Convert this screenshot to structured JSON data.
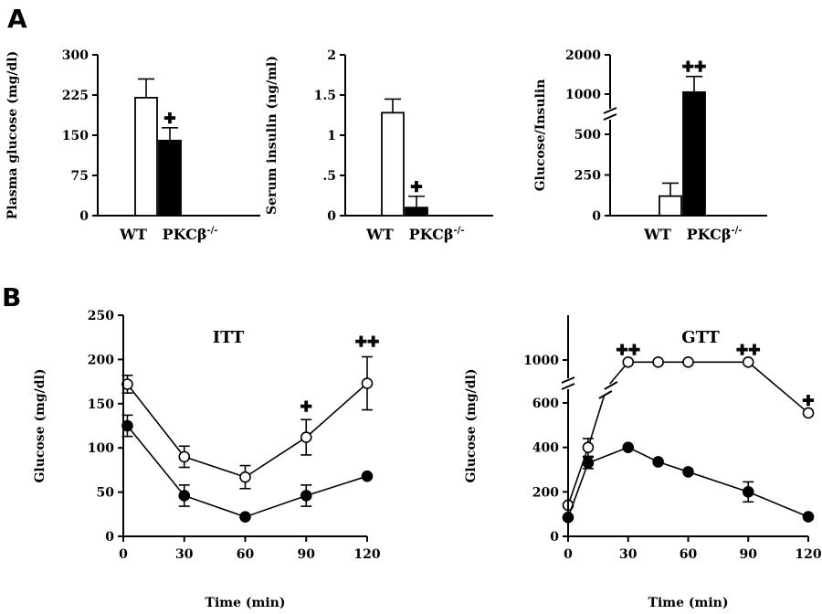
{
  "panels": {
    "a": "A",
    "b": "B"
  },
  "chart_data": [
    {
      "id": "glucose",
      "type": "bar",
      "ylabel": "Plasma glucose (mg/dl)",
      "ylim": [
        0,
        300
      ],
      "yticks": [
        0,
        75,
        150,
        225,
        300
      ],
      "ytick_labels": [
        "0",
        "75",
        "150",
        "225",
        "300"
      ],
      "categories": [
        "WT",
        "PKCβ-/-"
      ],
      "category_labels": [
        {
          "main": "WT",
          "sup": ""
        },
        {
          "main": "PKCβ",
          "sup": "-/-"
        }
      ],
      "values": [
        220,
        140
      ],
      "errors": [
        35,
        24
      ],
      "colors": [
        "#ffffff",
        "#000000"
      ],
      "annotations": [
        {
          "index": 1,
          "text": "✚"
        }
      ]
    },
    {
      "id": "insulin",
      "type": "bar",
      "ylabel": "Serum insulin (ng/ml)",
      "ylim": [
        0,
        2
      ],
      "yticks": [
        0,
        0.5,
        1,
        1.5,
        2
      ],
      "ytick_labels": [
        "0",
        ".5",
        "1",
        "1.5",
        "2"
      ],
      "categories": [
        "WT",
        "PKCβ-/-"
      ],
      "category_labels": [
        {
          "main": "WT",
          "sup": ""
        },
        {
          "main": "PKCβ",
          "sup": "-/-"
        }
      ],
      "values": [
        1.28,
        0.1
      ],
      "errors": [
        0.17,
        0.14
      ],
      "colors": [
        "#ffffff",
        "#000000"
      ],
      "annotations": [
        {
          "index": 1,
          "text": "✚"
        }
      ]
    },
    {
      "id": "ratio",
      "type": "bar",
      "ylabel": "Glucose/Insulin",
      "axis_break": true,
      "yticks": [
        0,
        250,
        500,
        1000,
        2000
      ],
      "ytick_labels": [
        "0",
        "250",
        "500",
        "1000",
        "2000"
      ],
      "categories": [
        "WT",
        "PKCβ-/-"
      ],
      "category_labels": [
        {
          "main": "WT",
          "sup": ""
        },
        {
          "main": "PKCβ",
          "sup": "-/-"
        }
      ],
      "values": [
        120,
        1050
      ],
      "errors": [
        80,
        400
      ],
      "colors": [
        "#ffffff",
        "#000000"
      ],
      "annotations": [
        {
          "index": 1,
          "text": "✚✚"
        }
      ]
    },
    {
      "id": "itt",
      "type": "line",
      "title": "ITT",
      "xlabel": "Time (min)",
      "ylabel": "Glucose (mg/dl)",
      "xlim": [
        0,
        120
      ],
      "ylim": [
        0,
        250
      ],
      "xticks": [
        0,
        30,
        60,
        90,
        120
      ],
      "yticks": [
        0,
        50,
        100,
        150,
        200,
        250
      ],
      "series": [
        {
          "marker": "open",
          "x": [
            2,
            30,
            60,
            90,
            120
          ],
          "y": [
            172,
            90,
            67,
            112,
            173
          ],
          "err": [
            10,
            12,
            13,
            20,
            30
          ]
        },
        {
          "marker": "filled",
          "x": [
            2,
            30,
            60,
            90,
            120
          ],
          "y": [
            125,
            46,
            22,
            46,
            68
          ],
          "err": [
            12,
            12,
            0,
            12,
            0
          ]
        }
      ],
      "annotations": [
        {
          "x": 90,
          "y": 112,
          "text": "✚"
        },
        {
          "x": 120,
          "y": 173,
          "text": "✚✚"
        }
      ]
    },
    {
      "id": "gtt",
      "type": "line",
      "title": "GTT",
      "xlabel": "Time (min)",
      "ylabel": "Glucose (mg/dl)",
      "axis_break": true,
      "xlim": [
        0,
        120
      ],
      "xticks": [
        0,
        30,
        60,
        90,
        120
      ],
      "yticks": [
        0,
        200,
        400,
        600,
        1000
      ],
      "series": [
        {
          "marker": "open",
          "x": [
            0,
            10,
            30,
            45,
            60,
            90,
            120
          ],
          "y": [
            140,
            400,
            980,
            980,
            980,
            980,
            555
          ],
          "err": [
            0,
            40,
            0,
            0,
            0,
            0,
            0
          ]
        },
        {
          "marker": "filled",
          "x": [
            0,
            10,
            30,
            45,
            60,
            90,
            120
          ],
          "y": [
            85,
            330,
            400,
            335,
            290,
            200,
            88
          ],
          "err": [
            0,
            25,
            0,
            0,
            0,
            45,
            0
          ]
        }
      ],
      "annotations": [
        {
          "x": 30,
          "y": 980,
          "text": "✚✚"
        },
        {
          "x": 90,
          "y": 980,
          "text": "✚✚"
        },
        {
          "x": 120,
          "y": 555,
          "text": "✚"
        }
      ]
    }
  ]
}
